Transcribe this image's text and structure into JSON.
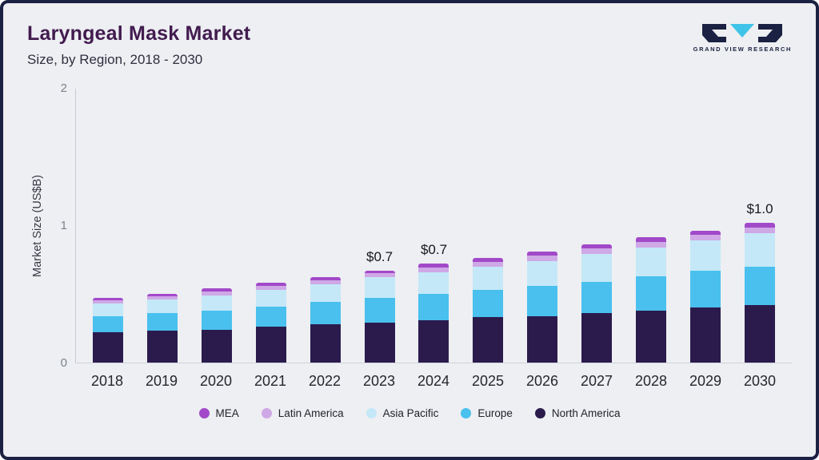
{
  "header": {
    "title": "Laryngeal Mask Market",
    "subtitle": "Size, by Region, 2018 - 2030",
    "logo_text": "GRAND VIEW RESEARCH"
  },
  "chart_data": {
    "type": "bar",
    "stacked": true,
    "title": "Laryngeal Mask Market Size, by Region, 2018 - 2030",
    "xlabel": "",
    "ylabel": "Market Size (US$B)",
    "ylim": [
      0,
      2
    ],
    "yticks": [
      0,
      1,
      2
    ],
    "grid": false,
    "legend_position": "bottom",
    "categories": [
      "2018",
      "2019",
      "2020",
      "2021",
      "2022",
      "2023",
      "2024",
      "2025",
      "2026",
      "2027",
      "2028",
      "2029",
      "2030"
    ],
    "series": [
      {
        "name": "North America",
        "color": "#2b1b4d",
        "values": [
          0.22,
          0.23,
          0.24,
          0.26,
          0.28,
          0.29,
          0.31,
          0.33,
          0.34,
          0.36,
          0.38,
          0.4,
          0.42
        ]
      },
      {
        "name": "Europe",
        "color": "#49c0ee",
        "values": [
          0.12,
          0.13,
          0.14,
          0.15,
          0.16,
          0.18,
          0.19,
          0.2,
          0.22,
          0.23,
          0.25,
          0.27,
          0.28
        ]
      },
      {
        "name": "Asia Pacific",
        "color": "#c4e8f8",
        "values": [
          0.09,
          0.1,
          0.11,
          0.12,
          0.13,
          0.15,
          0.16,
          0.17,
          0.18,
          0.2,
          0.21,
          0.22,
          0.24
        ]
      },
      {
        "name": "Latin America",
        "color": "#cfa8e6",
        "values": [
          0.025,
          0.025,
          0.03,
          0.03,
          0.03,
          0.03,
          0.035,
          0.035,
          0.04,
          0.04,
          0.04,
          0.04,
          0.04
        ]
      },
      {
        "name": "MEA",
        "color": "#a249c9",
        "values": [
          0.015,
          0.015,
          0.02,
          0.02,
          0.02,
          0.02,
          0.025,
          0.025,
          0.03,
          0.03,
          0.03,
          0.03,
          0.04
        ]
      }
    ],
    "annotations": [
      {
        "category": "2023",
        "text": "$0.7"
      },
      {
        "category": "2024",
        "text": "$0.7"
      },
      {
        "category": "2030",
        "text": "$1.0"
      }
    ],
    "legend": [
      {
        "label": "MEA",
        "color": "#a249c9"
      },
      {
        "label": "Latin America",
        "color": "#cfa8e6"
      },
      {
        "label": "Asia Pacific",
        "color": "#c4e8f8"
      },
      {
        "label": "Europe",
        "color": "#49c0ee"
      },
      {
        "label": "North America",
        "color": "#2b1b4d"
      }
    ]
  }
}
